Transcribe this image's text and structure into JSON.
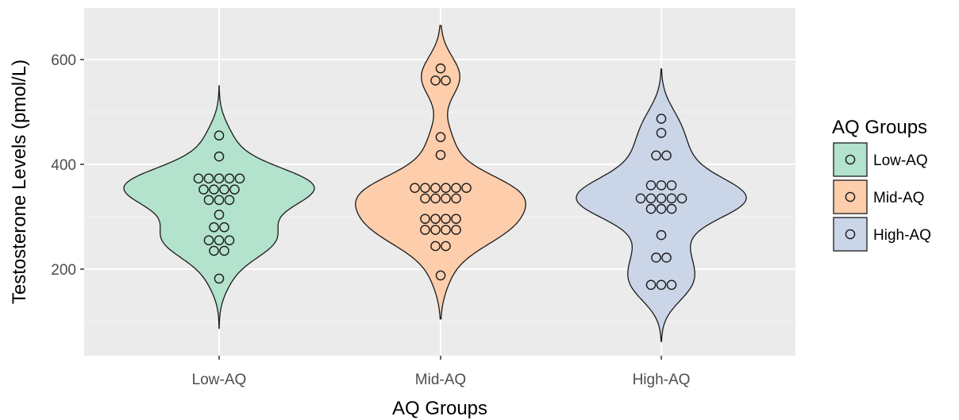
{
  "chart_data": {
    "type": "violin",
    "title": "",
    "xlabel": "AQ Groups",
    "ylabel": "Testosterone Levels (pmol/L)",
    "ylim": [
      45,
      680
    ],
    "yticks": [
      200,
      400,
      600
    ],
    "categories": [
      "Low-AQ",
      "Mid-AQ",
      "High-AQ"
    ],
    "grid": true,
    "legend": {
      "title": "AQ Groups",
      "placement": "right",
      "items": [
        "Low-AQ",
        "Mid-AQ",
        "High-AQ"
      ]
    },
    "series": [
      {
        "category": "Low-AQ",
        "color": "#b3e2cd",
        "range": [
          87,
          550
        ],
        "values": [
          455,
          415,
          373,
          373,
          373,
          373,
          373,
          352,
          352,
          352,
          352,
          332,
          332,
          332,
          304,
          280,
          280,
          255,
          255,
          255,
          235,
          235,
          182
        ]
      },
      {
        "category": "Mid-AQ",
        "color": "#fdcdac",
        "range": [
          105,
          665
        ],
        "values": [
          583,
          560,
          560,
          452,
          418,
          355,
          355,
          355,
          355,
          355,
          355,
          335,
          335,
          335,
          335,
          296,
          296,
          296,
          296,
          275,
          275,
          275,
          275,
          244,
          244,
          188
        ]
      },
      {
        "category": "High-AQ",
        "color": "#cbd5e8",
        "range": [
          62,
          582
        ],
        "values": [
          487,
          460,
          417,
          417,
          360,
          360,
          360,
          335,
          335,
          335,
          335,
          335,
          315,
          315,
          315,
          265,
          222,
          222,
          170,
          170,
          170
        ]
      }
    ]
  }
}
